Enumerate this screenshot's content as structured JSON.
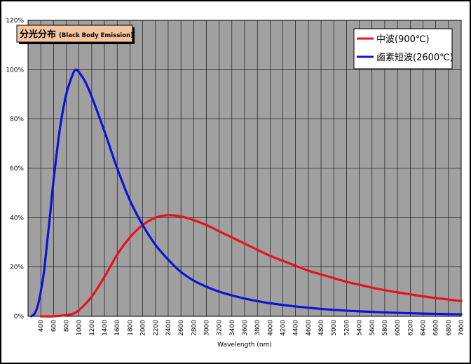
{
  "chart_data": {
    "type": "line",
    "title_main": "分光分布",
    "title_sub": "(Black Body Emission)",
    "xlabel": "Wavelength (nm)",
    "ylabel": "",
    "xlim": [
      200,
      7000
    ],
    "ylim": [
      0,
      120
    ],
    "grid": true,
    "legend_position": "top-right",
    "x_ticks": [
      400,
      600,
      800,
      1000,
      1200,
      1400,
      1600,
      1800,
      2000,
      2200,
      2400,
      2600,
      2800,
      3000,
      3200,
      3400,
      3600,
      3800,
      4000,
      4200,
      4400,
      4600,
      4800,
      5000,
      5200,
      5400,
      5600,
      5800,
      6000,
      6200,
      6400,
      6600,
      6800,
      7000
    ],
    "y_ticks": [
      "0%",
      "20%",
      "40%",
      "60%",
      "80%",
      "100%",
      "120%"
    ],
    "series": [
      {
        "name": "中波(900℃)",
        "color": "#e8121a",
        "x": [
          400,
          600,
          800,
          900,
          1000,
          1200,
          1400,
          1600,
          1800,
          2000,
          2200,
          2400,
          2600,
          2800,
          3000,
          3200,
          3400,
          3600,
          3800,
          4000,
          4200,
          4400,
          4600,
          4800,
          5000,
          5200,
          5400,
          5600,
          5800,
          6000,
          6200,
          6400,
          6600,
          6800,
          7000
        ],
        "y": [
          0,
          0,
          0.5,
          1,
          2.5,
          8,
          16,
          25,
          32,
          37,
          40,
          41,
          40.5,
          39,
          37,
          34.5,
          32,
          29.5,
          27,
          24.5,
          22.5,
          20.5,
          18.5,
          17,
          15.5,
          14,
          12.8,
          11.6,
          10.6,
          9.7,
          8.9,
          8.1,
          7.4,
          6.8,
          6.2
        ]
      },
      {
        "name": "鹵素短波(2600℃)",
        "color": "#0a14d6",
        "x": [
          250,
          300,
          350,
          400,
          450,
          500,
          550,
          600,
          700,
          800,
          900,
          950,
          1000,
          1100,
          1200,
          1400,
          1600,
          1800,
          2000,
          2200,
          2400,
          2600,
          2800,
          3000,
          3200,
          3400,
          3600,
          3800,
          4000,
          4400,
          4800,
          5200,
          5600,
          6000,
          6400,
          7000
        ],
        "y": [
          0,
          1,
          4,
          10,
          18,
          30,
          42,
          55,
          76,
          90,
          98,
          100,
          99,
          95,
          89,
          75,
          60,
          47,
          37,
          29,
          23,
          18,
          14.5,
          12,
          10,
          8.5,
          7.2,
          6.2,
          5.3,
          4,
          3,
          2.3,
          1.8,
          1.4,
          1.1,
          0.8
        ]
      }
    ]
  }
}
